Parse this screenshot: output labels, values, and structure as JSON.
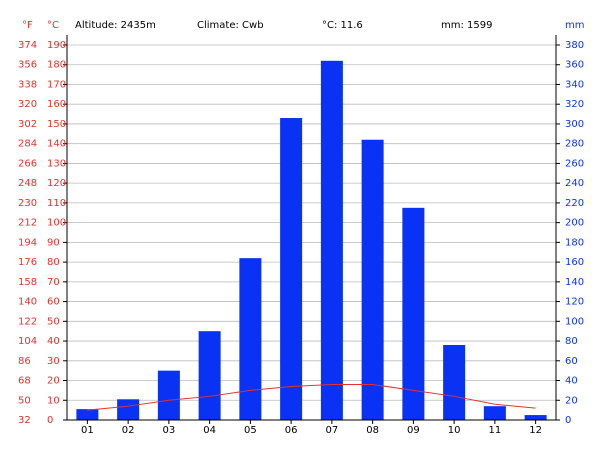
{
  "chart_data": {
    "type": "climate",
    "header": [
      "Altitude: 2435m",
      "Climate: Cwb",
      "°C: 11.6",
      "mm: 1599"
    ],
    "f_label": "°F",
    "y_label": "°C",
    "y2_label": "mm",
    "categories": [
      "01",
      "02",
      "03",
      "04",
      "05",
      "06",
      "07",
      "08",
      "09",
      "10",
      "11",
      "12"
    ],
    "ylim": [
      0,
      190
    ],
    "yticks": [
      0,
      10,
      20,
      30,
      40,
      50,
      60,
      70,
      80,
      90,
      100,
      110,
      120,
      130,
      140,
      150,
      160,
      170,
      180,
      190
    ],
    "flim": [
      32,
      374
    ],
    "fticks": [
      32,
      50,
      68,
      86,
      104,
      122,
      140,
      158,
      176,
      194,
      212,
      230,
      248,
      266,
      284,
      302,
      320,
      338,
      356,
      374
    ],
    "y2lim": [
      0,
      380
    ],
    "y2ticks": [
      0,
      20,
      40,
      60,
      80,
      100,
      120,
      140,
      160,
      180,
      200,
      220,
      240,
      260,
      280,
      300,
      320,
      340,
      360,
      380
    ],
    "grid": true,
    "series": [
      {
        "type": "bar",
        "axis": "y2",
        "color": "#0a32f5",
        "values": [
          11,
          21,
          50,
          90,
          164,
          306,
          364,
          284,
          215,
          76,
          14,
          5
        ]
      },
      {
        "type": "line",
        "axis": "y",
        "color": "#e8302a",
        "values": [
          5,
          7,
          10,
          12,
          15,
          17,
          18,
          18,
          15,
          12,
          8,
          6
        ]
      }
    ]
  }
}
